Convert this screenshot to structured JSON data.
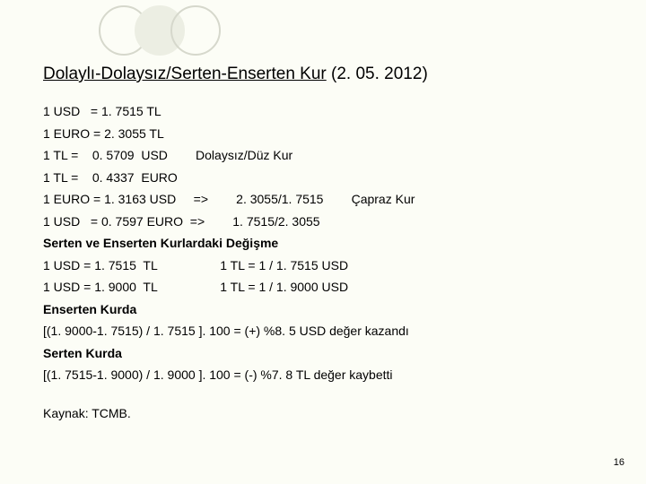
{
  "title_underlined": "Dolaylı-Dolaysız/Serten-Enserten Kur",
  "title_rest": "  (2. 05. 2012)",
  "lines": [
    "1 USD   = 1. 7515 TL",
    "1 EURO = 2. 3055 TL",
    "1 TL =    0. 5709  USD        Dolaysız/Düz Kur",
    "1 TL =    0. 4337  EURO",
    "1 EURO = 1. 3163 USD     =>        2. 3055/1. 7515        Çapraz Kur",
    "1 USD   = 0. 7597 EURO  =>        1. 7515/2. 3055",
    "Serten ve Enserten Kurlardaki Değişme",
    "1 USD = 1. 7515  TL                  1 TL = 1 / 1. 7515 USD",
    "1 USD = 1. 9000  TL                  1 TL = 1 / 1. 9000 USD",
    "Enserten Kurda",
    "[(1. 9000-1. 7515) / 1. 7515 ]. 100 = (+) %8. 5 USD değer kazandı",
    "Serten Kurda",
    "[(1. 7515-1. 9000) / 1. 9000 ]. 100 = (-) %7. 8 TL değer kaybetti"
  ],
  "bold_lines": [
    6,
    9,
    11
  ],
  "footer": "Kaynak: TCMB.",
  "page_number": "16",
  "colors": {
    "background": "#fcfdf6",
    "circle_stroke": "#d6d8cc",
    "circle_fill": "#eceee3",
    "text": "#000000"
  }
}
